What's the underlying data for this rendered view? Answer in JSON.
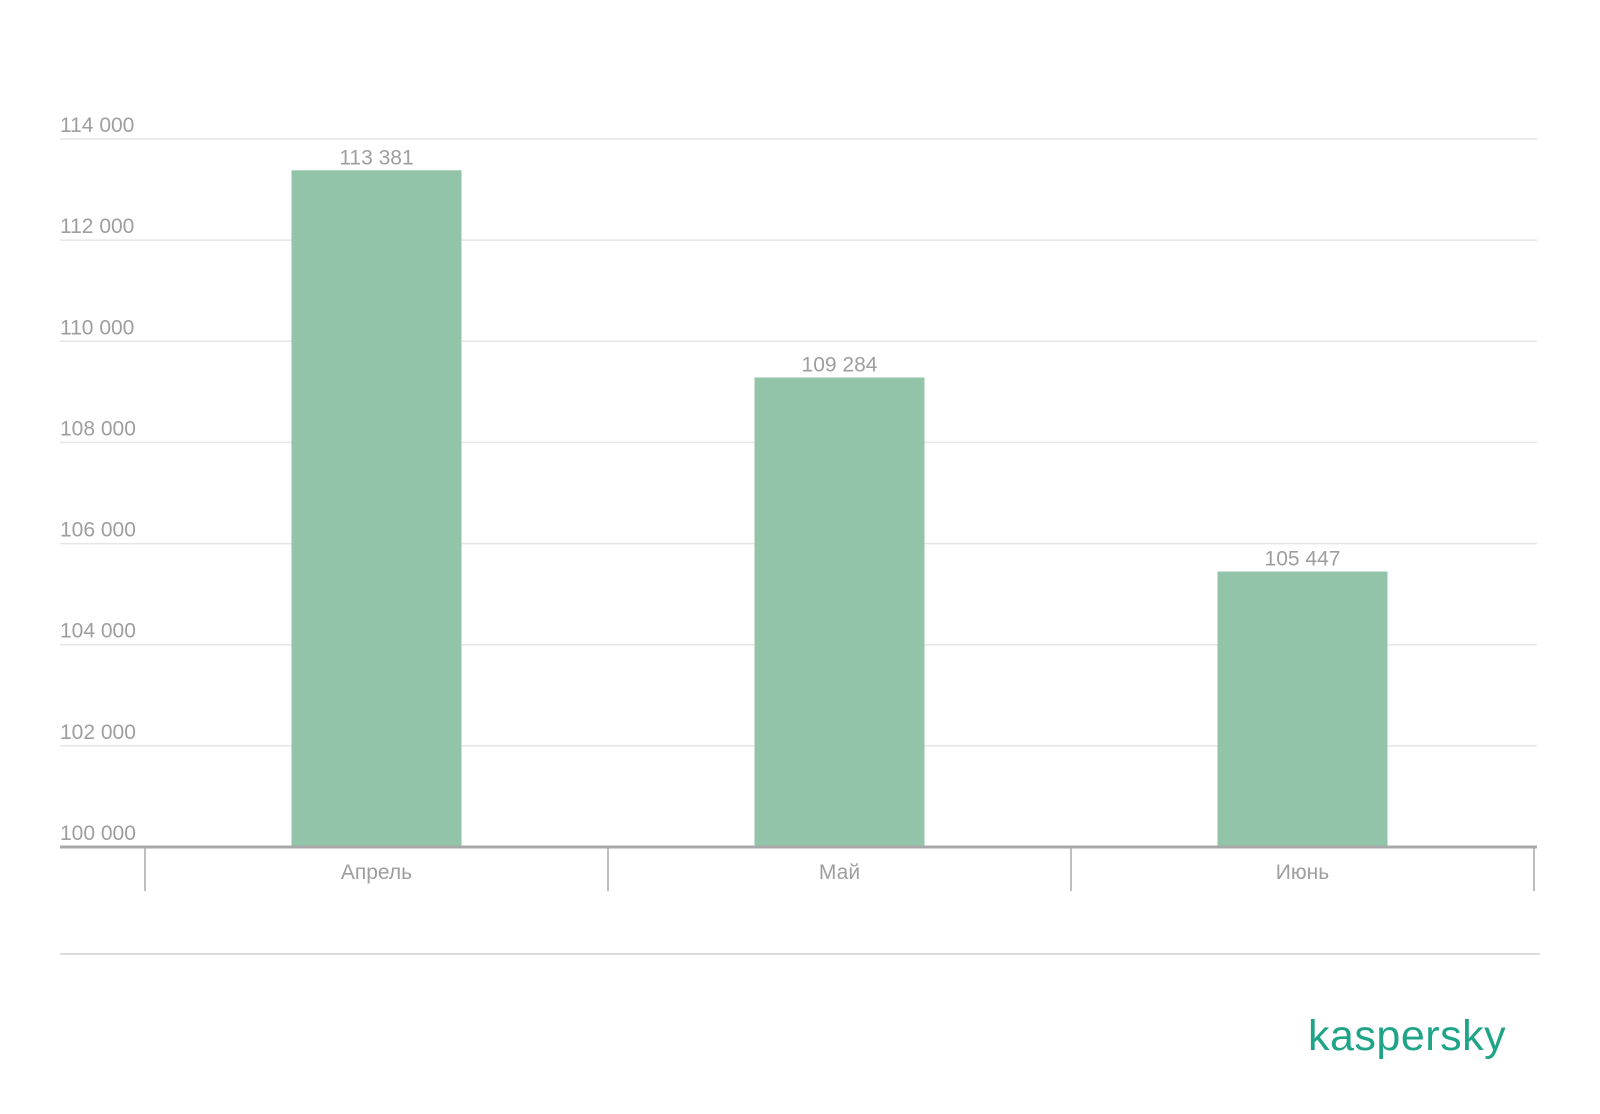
{
  "chart_data": {
    "type": "bar",
    "categories": [
      "Апрель",
      "Май",
      "Июнь"
    ],
    "values": [
      113381,
      109284,
      105447
    ],
    "value_labels": [
      "113 381",
      "109 284",
      "105 447"
    ],
    "ylim": [
      100000,
      114000
    ],
    "yticks": [
      100000,
      102000,
      104000,
      106000,
      108000,
      110000,
      112000,
      114000
    ],
    "ytick_labels": [
      "100 000",
      "102 000",
      "104 000",
      "106 000",
      "108 000",
      "110 000",
      "112 000",
      "114 000"
    ],
    "grid": true,
    "bar_color": "#91c4a9",
    "grid_color": "#e6e6e6",
    "axis_color": "#a8a8a8",
    "text_color": "#9e9e9e"
  },
  "branding": {
    "logo_text": "kaspersky",
    "logo_color": "#1fa488"
  }
}
